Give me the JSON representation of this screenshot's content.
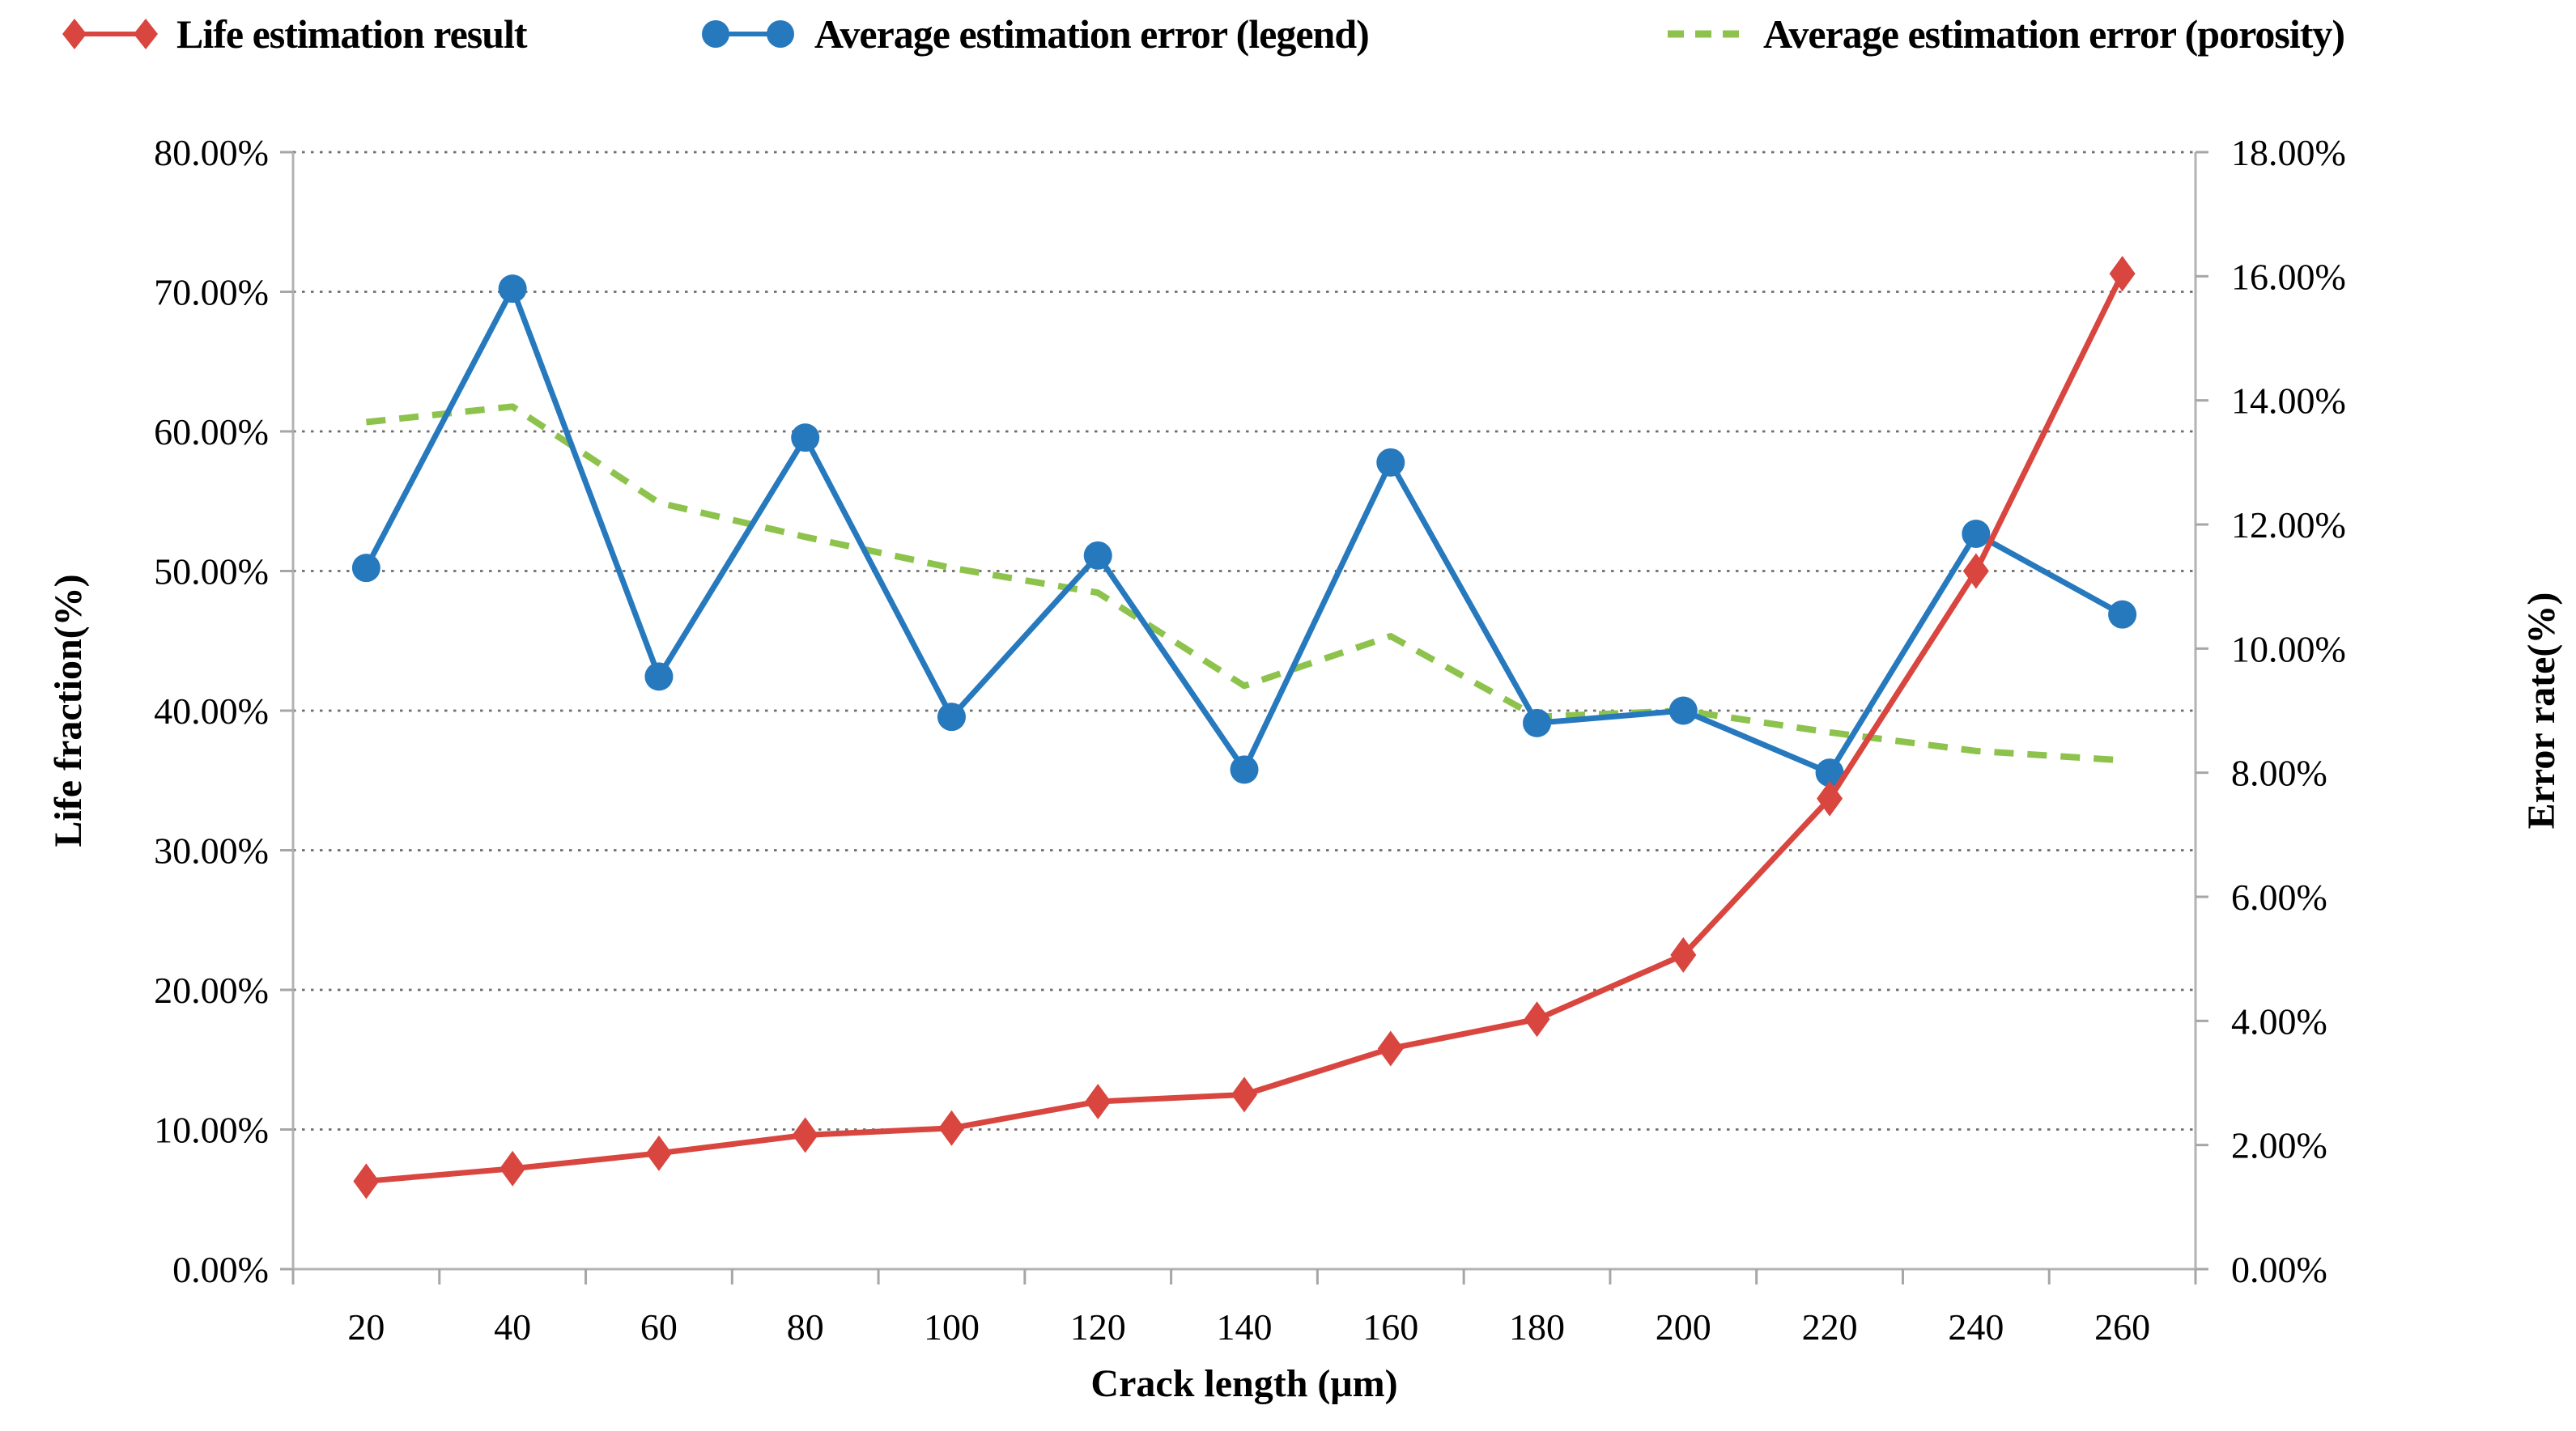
{
  "chart_data": {
    "type": "line",
    "title": "",
    "xlabel": "Crack length (μm)",
    "x_categories": [
      20,
      40,
      60,
      80,
      100,
      120,
      140,
      160,
      180,
      200,
      220,
      240,
      260
    ],
    "x_tick_labels": [
      "20",
      "40",
      "60",
      "80",
      "100",
      "120",
      "140",
      "160",
      "180",
      "200",
      "220",
      "240",
      "260"
    ],
    "left_axis": {
      "label": "Life fraction(%)",
      "min": 0,
      "max": 80,
      "step": 10,
      "tick_labels": [
        "0.00%",
        "10.00%",
        "20.00%",
        "30.00%",
        "40.00%",
        "50.00%",
        "60.00%",
        "70.00%",
        "80.00%"
      ]
    },
    "right_axis": {
      "label": "Error rate(%)",
      "min": 0,
      "max": 18,
      "step": 2,
      "tick_labels": [
        "0.00%",
        "2.00%",
        "4.00%",
        "6.00%",
        "8.00%",
        "10.00%",
        "12.00%",
        "14.00%",
        "16.00%",
        "18.00%"
      ]
    },
    "grid": "horizontal-dotted",
    "legend_position": "top",
    "series": [
      {
        "name": "Life estimation result",
        "axis": "left",
        "color": "#d9453f",
        "marker": "diamond",
        "line_style": "solid",
        "values_pct": [
          6.3,
          7.2,
          8.3,
          9.6,
          10.1,
          12.0,
          12.5,
          15.8,
          17.9,
          22.5,
          33.7,
          50.0,
          71.3
        ]
      },
      {
        "name": "Average estimation error (legend)",
        "axis": "right",
        "color": "#2779be",
        "marker": "circle",
        "line_style": "solid",
        "values_pct": [
          11.3,
          15.8,
          9.55,
          13.4,
          8.9,
          11.5,
          8.05,
          13.0,
          8.8,
          9.0,
          8.0,
          11.85,
          10.55
        ]
      },
      {
        "name": "Average estimation error (porosity)",
        "axis": "right",
        "color": "#8dc34c",
        "marker": "none",
        "line_style": "dashed",
        "values_pct": [
          13.65,
          13.9,
          12.35,
          11.8,
          11.3,
          10.9,
          9.4,
          10.2,
          8.9,
          9.0,
          8.65,
          8.35,
          8.2
        ]
      }
    ]
  },
  "colors": {
    "gridline": "#6e6e6e",
    "axis_line": "#b3b3b3",
    "tick_stub": "#a6a6a6",
    "text": "#000000"
  }
}
